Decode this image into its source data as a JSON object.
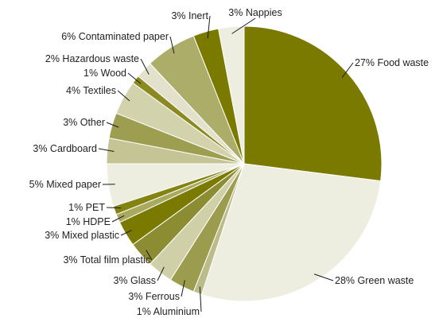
{
  "chart_data": {
    "type": "pie",
    "title": "",
    "start_angle_deg": 0,
    "direction": "clockwise",
    "slices": [
      {
        "name": "Food waste",
        "value": 27,
        "label": "27% Food waste",
        "color": "#7a7a00"
      },
      {
        "name": "Green waste",
        "value": 28,
        "label": "28% Green waste",
        "color": "#eeeee0"
      },
      {
        "name": "Aluminium",
        "value": 1,
        "label": "1% Aluminium",
        "color": "#bcbc8a"
      },
      {
        "name": "Ferrous",
        "value": 3,
        "label": "3% Ferrous",
        "color": "#9c9c4e"
      },
      {
        "name": "Glass",
        "value": 3,
        "label": "3% Glass",
        "color": "#d0d0a8"
      },
      {
        "name": "Total film plastic",
        "value": 3,
        "label": "3% Total film plastic",
        "color": "#8c8c32"
      },
      {
        "name": "Mixed plastic",
        "value": 3,
        "label": "3% Mixed plastic",
        "color": "#7a7a00"
      },
      {
        "name": "HDPE",
        "value": 1,
        "label": "1% HDPE",
        "color": "#a9a960"
      },
      {
        "name": "PET",
        "value": 1,
        "label": "1% PET",
        "color": "#838310"
      },
      {
        "name": "Mixed paper",
        "value": 5,
        "label": "5% Mixed paper",
        "color": "#eeeee0"
      },
      {
        "name": "Cardboard",
        "value": 3,
        "label": "3% Cardboard",
        "color": "#c4c494"
      },
      {
        "name": "Other",
        "value": 3,
        "label": "3% Other",
        "color": "#9e9e50"
      },
      {
        "name": "Textiles",
        "value": 4,
        "label": "4% Textiles",
        "color": "#d2d2ac"
      },
      {
        "name": "Wood",
        "value": 1,
        "label": "1% Wood",
        "color": "#8a8a20"
      },
      {
        "name": "Hazardous waste",
        "value": 2,
        "label": "2% Hazardous waste",
        "color": "#e2e2cc"
      },
      {
        "name": "Contaminated paper",
        "value": 6,
        "label": "6% Contaminated paper",
        "color": "#adad6a"
      },
      {
        "name": "Inert",
        "value": 3,
        "label": "3% Inert",
        "color": "#7a7a00"
      },
      {
        "name": "Nappies",
        "value": 3,
        "label": "3% Nappies",
        "color": "#eeeee0"
      }
    ]
  }
}
